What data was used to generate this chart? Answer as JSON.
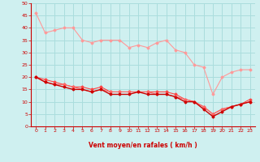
{
  "xlabel": "Vent moyen/en rafales ( km/h )",
  "bg_color": "#cff0f0",
  "grid_color": "#aadddd",
  "x_values": [
    0,
    1,
    2,
    3,
    4,
    5,
    6,
    7,
    8,
    9,
    10,
    11,
    12,
    13,
    14,
    15,
    16,
    17,
    18,
    19,
    20,
    21,
    22,
    23
  ],
  "line1": [
    46,
    38,
    39,
    40,
    40,
    35,
    34,
    35,
    35,
    35,
    32,
    33,
    32,
    34,
    35,
    31,
    30,
    25,
    24,
    13,
    20,
    22,
    23,
    23
  ],
  "line2": [
    20,
    19,
    18,
    17,
    16,
    16,
    15,
    16,
    14,
    14,
    14,
    14,
    14,
    14,
    14,
    13,
    11,
    10,
    8,
    5,
    7,
    8,
    9,
    11
  ],
  "line3": [
    20,
    18,
    17,
    16,
    15,
    15,
    14,
    15,
    13,
    13,
    13,
    14,
    13,
    13,
    13,
    12,
    10,
    10,
    7,
    4,
    6,
    8,
    9,
    10
  ],
  "line4": [
    20,
    18,
    17,
    17,
    16,
    15,
    14,
    15,
    14,
    14,
    14,
    14,
    14,
    13,
    13,
    12,
    11,
    10,
    8,
    5,
    7,
    8,
    9,
    10
  ],
  "line1_color": "#ff9999",
  "line2_color": "#ff4444",
  "line3_color": "#cc0000",
  "line4_color": "#ff6666",
  "ylim": [
    0,
    50
  ],
  "xlim": [
    -0.5,
    23.5
  ],
  "yticks": [
    0,
    5,
    10,
    15,
    20,
    25,
    30,
    35,
    40,
    45,
    50
  ],
  "xticks": [
    0,
    1,
    2,
    3,
    4,
    5,
    6,
    7,
    8,
    9,
    10,
    11,
    12,
    13,
    14,
    15,
    16,
    17,
    18,
    19,
    20,
    21,
    22,
    23
  ],
  "arrow_color": "#cc4444",
  "xlabel_color": "#cc0000",
  "tick_color": "#cc0000",
  "marker": "D",
  "markersize": 1.5,
  "linewidth": 0.8
}
